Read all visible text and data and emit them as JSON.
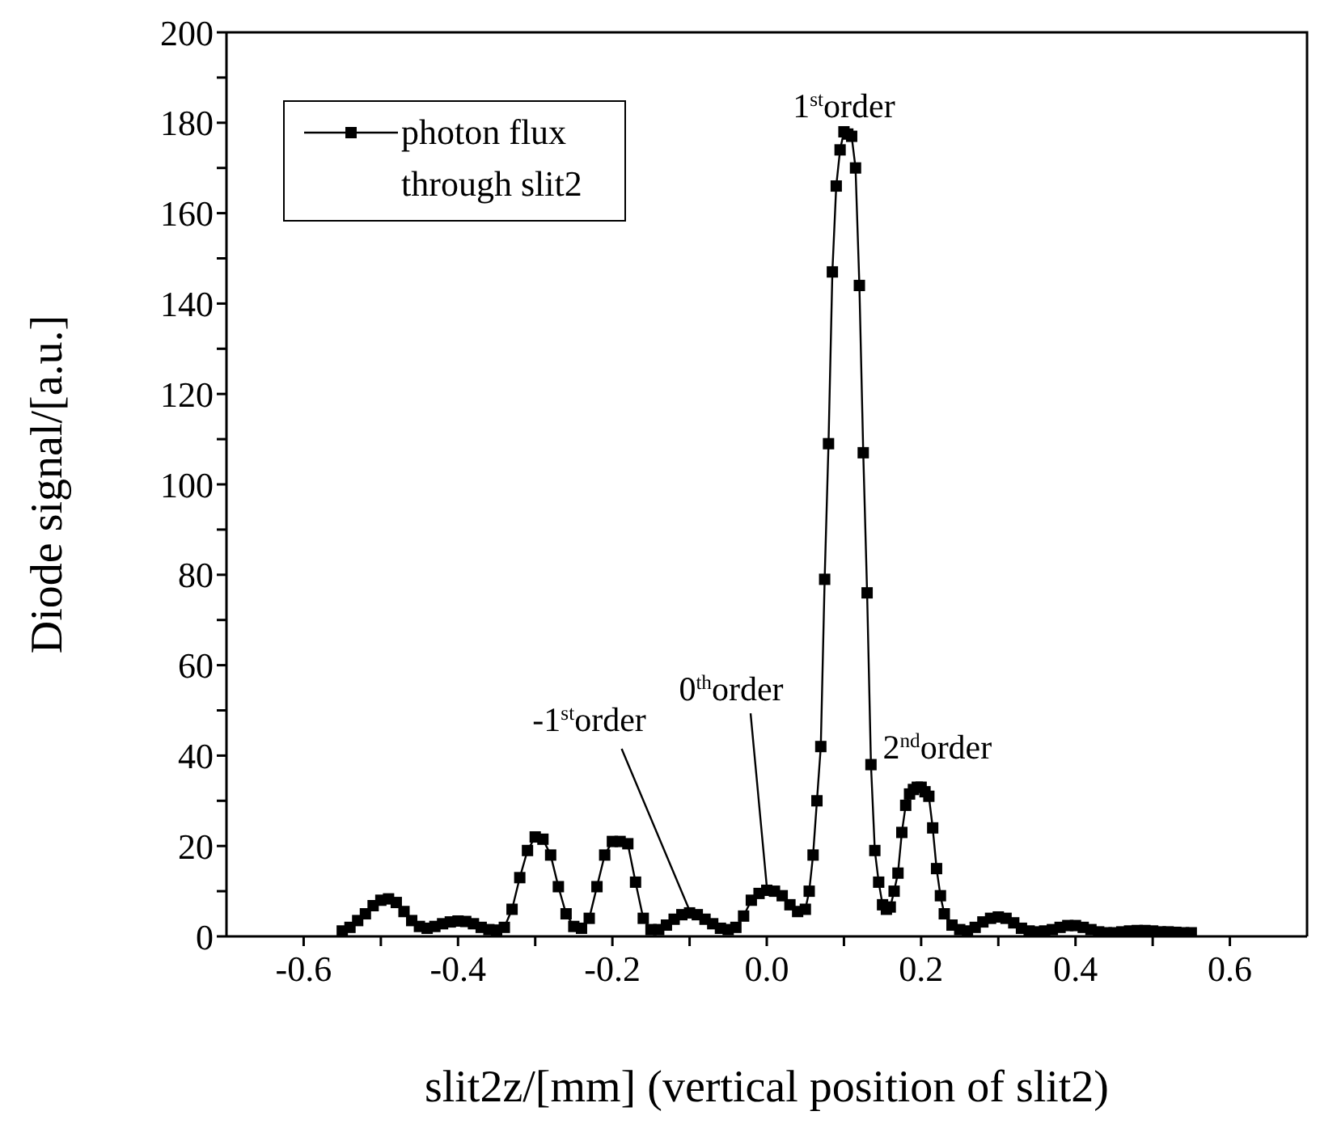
{
  "chart_data": {
    "type": "line",
    "xlabel": "slit2z/[mm] (vertical position of slit2)",
    "ylabel": "Diode signal/[a.u.]",
    "xlim": [
      -0.7,
      0.7
    ],
    "xticks": [
      {
        "value": -0.6,
        "label": "-0.6"
      },
      {
        "value": -0.5,
        "label": null
      },
      {
        "value": -0.4,
        "label": "-0.4"
      },
      {
        "value": -0.3,
        "label": null
      },
      {
        "value": -0.2,
        "label": "-0.2"
      },
      {
        "value": -0.1,
        "label": null
      },
      {
        "value": 0,
        "label": "0.0"
      },
      {
        "value": 0.1,
        "label": null
      },
      {
        "value": 0.2,
        "label": "0.2"
      },
      {
        "value": 0.3,
        "label": null
      },
      {
        "value": 0.4,
        "label": "0.4"
      },
      {
        "value": 0.5,
        "label": null
      },
      {
        "value": 0.6,
        "label": "0.6"
      }
    ],
    "ylim": [
      0,
      200
    ],
    "yticks": [
      0,
      {
        "value": 10,
        "label": null
      },
      20,
      {
        "value": 30,
        "label": null
      },
      40,
      {
        "value": 50,
        "label": null
      },
      60,
      {
        "value": 70,
        "label": null
      },
      80,
      {
        "value": 90,
        "label": null
      },
      100,
      {
        "value": 110,
        "label": null
      },
      120,
      {
        "value": 130,
        "label": null
      },
      140,
      {
        "value": 150,
        "label": null
      },
      160,
      {
        "value": 170,
        "label": null
      },
      180,
      {
        "value": 190,
        "label": null
      },
      200
    ],
    "grid": false,
    "legend": "top left",
    "marker": "square",
    "line_style": "solid",
    "series": [
      {
        "name": "photon flux through slit2",
        "color": "#000000",
        "x": [
          -0.55,
          -0.54,
          -0.53,
          -0.52,
          -0.51,
          -0.5,
          -0.49,
          -0.48,
          -0.47,
          -0.46,
          -0.45,
          -0.44,
          -0.43,
          -0.42,
          -0.41,
          -0.4,
          -0.39,
          -0.38,
          -0.37,
          -0.36,
          -0.35,
          -0.34,
          -0.33,
          -0.32,
          -0.31,
          -0.3,
          -0.29,
          -0.28,
          -0.27,
          -0.26,
          -0.25,
          -0.24,
          -0.23,
          -0.22,
          -0.21,
          -0.2,
          -0.19,
          -0.18,
          -0.17,
          -0.16,
          -0.15,
          -0.14,
          -0.13,
          -0.12,
          -0.11,
          -0.1,
          -0.09,
          -0.08,
          -0.07,
          -0.06,
          -0.05,
          -0.04,
          -0.03,
          -0.02,
          -0.01,
          0,
          0.01,
          0.02,
          0.03,
          0.04,
          0.05,
          0.055,
          0.06,
          0.065,
          0.07,
          0.075,
          0.08,
          0.085,
          0.09,
          0.095,
          0.1,
          0.105,
          0.11,
          0.115,
          0.12,
          0.125,
          0.13,
          0.135,
          0.14,
          0.145,
          0.15,
          0.155,
          0.16,
          0.165,
          0.17,
          0.175,
          0.18,
          0.185,
          0.19,
          0.195,
          0.2,
          0.205,
          0.21,
          0.215,
          0.22,
          0.225,
          0.23,
          0.24,
          0.25,
          0.26,
          0.27,
          0.28,
          0.29,
          0.3,
          0.31,
          0.32,
          0.33,
          0.34,
          0.35,
          0.36,
          0.37,
          0.38,
          0.39,
          0.4,
          0.41,
          0.42,
          0.43,
          0.44,
          0.45,
          0.46,
          0.47,
          0.48,
          0.49,
          0.5,
          0.51,
          0.52,
          0.53,
          0.54,
          0.55
        ],
        "values": [
          1.2,
          2,
          3.5,
          5,
          6.8,
          8,
          8.3,
          7.5,
          5.5,
          3.5,
          2.2,
          1.8,
          2.2,
          2.8,
          3.2,
          3.4,
          3.3,
          2.8,
          2,
          1.5,
          1.4,
          2,
          6,
          13,
          19,
          22,
          21.5,
          18,
          11,
          5,
          2.2,
          1.8,
          4,
          11,
          18,
          21,
          21,
          20.5,
          12,
          4,
          1.5,
          1.5,
          2.5,
          3.8,
          4.8,
          5.2,
          4.8,
          3.8,
          2.8,
          1.8,
          1.5,
          2,
          4.5,
          8,
          9.5,
          10.2,
          10,
          9,
          7,
          5.5,
          6,
          10,
          18,
          30,
          42,
          79,
          109,
          147,
          166,
          174,
          178,
          177.5,
          177,
          170,
          144,
          107,
          76,
          38,
          19,
          12,
          7,
          6,
          6.5,
          10,
          14,
          23,
          29,
          31.5,
          32.5,
          33,
          33,
          32,
          31,
          24,
          15,
          9,
          5,
          2.5,
          1.5,
          1.2,
          2,
          3.2,
          4,
          4.3,
          4,
          3,
          1.8,
          1.2,
          1,
          1.2,
          1.5,
          2,
          2.4,
          2.4,
          2,
          1.5,
          1,
          0.8,
          0.8,
          1,
          1.2,
          1.3,
          1.3,
          1.2,
          1,
          1,
          0.9,
          0.8,
          0.8
        ]
      }
    ],
    "annotations": [
      {
        "text": "1$^{st}$order",
        "x": 0.1,
        "y": 178
      },
      {
        "text": "2$^{nd}$order",
        "x": 0.2,
        "y": 33
      },
      {
        "text": "-1$^{st}$order",
        "x": -0.1,
        "y": 5
      },
      {
        "text": "0$^{th}$order",
        "x": 0,
        "y": 10
      }
    ]
  }
}
